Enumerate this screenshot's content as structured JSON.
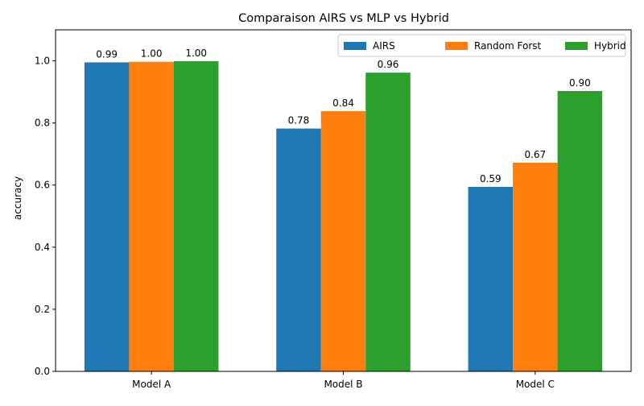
{
  "chart_data": {
    "type": "bar",
    "title": "Comparaison AIRS vs MLP vs Hybrid",
    "xlabel": "",
    "ylabel": "accuracy",
    "ylim": [
      0,
      1.1
    ],
    "yticks": [
      0.0,
      0.2,
      0.4,
      0.6,
      0.8,
      1.0
    ],
    "ytick_labels": [
      "0.0",
      "0.2",
      "0.4",
      "0.6",
      "0.8",
      "1.0"
    ],
    "categories": [
      "Model A",
      "Model B",
      "Model C"
    ],
    "series": [
      {
        "name": "AIRS",
        "color": "#1f77b4",
        "values": [
          0.995,
          0.782,
          0.594
        ],
        "labels": [
          "0.99",
          "0.78",
          "0.59"
        ]
      },
      {
        "name": "Random Forst",
        "color": "#ff7f0e",
        "values": [
          0.997,
          0.838,
          0.672
        ],
        "labels": [
          "1.00",
          "0.84",
          "0.67"
        ]
      },
      {
        "name": "Hybrid",
        "color": "#2ca02c",
        "values": [
          0.999,
          0.962,
          0.903
        ],
        "labels": [
          "1.00",
          "0.96",
          "0.90"
        ]
      }
    ],
    "grid": false,
    "legend": "top-right, horizontal"
  }
}
